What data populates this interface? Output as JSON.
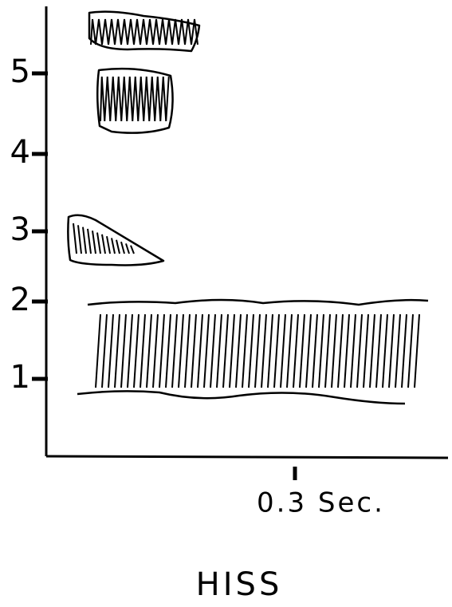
{
  "axes": {
    "y_ticks": [
      "1",
      "2",
      "3",
      "4",
      "5"
    ],
    "x_tick": "0.3 Sec."
  },
  "caption": "HISS"
}
